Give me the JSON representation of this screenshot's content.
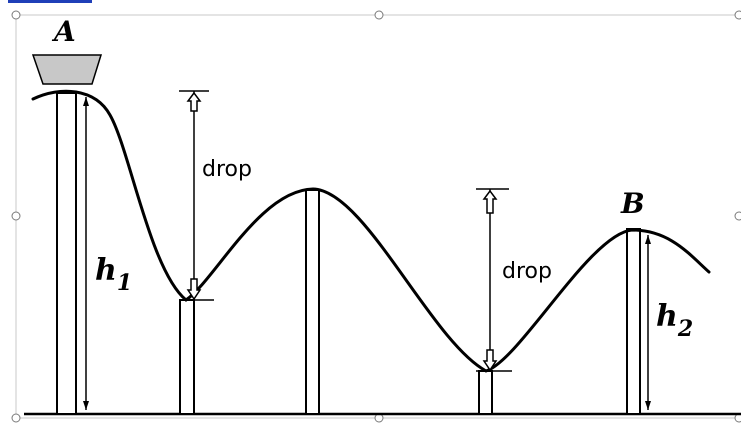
{
  "labels": {
    "point_a": "A",
    "point_b": "B",
    "h1_letter": "h",
    "h1_sub": "1",
    "h2_letter": "h",
    "h2_sub": "2",
    "drop_left": "drop",
    "drop_right": "drop"
  },
  "colors": {
    "cart_fill": "#c8c8c8",
    "line": "#000000",
    "selection_border": "#c8c8c8",
    "top_link_accent": "#1f3fb8"
  }
}
